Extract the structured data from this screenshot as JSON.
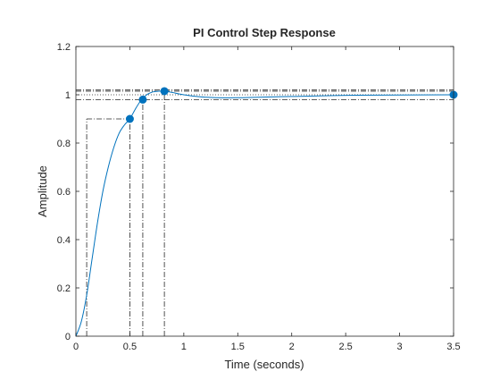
{
  "chart_data": {
    "type": "line",
    "title": "PI Control Step Response",
    "xlabel": "Time (seconds)",
    "ylabel": "Amplitude",
    "xlim": [
      0,
      3.5
    ],
    "ylim": [
      0,
      1.2
    ],
    "xticks": [
      0,
      0.5,
      1,
      1.5,
      2,
      2.5,
      3,
      3.5
    ],
    "yticks": [
      0,
      0.2,
      0.4,
      0.6,
      0.8,
      1,
      1.2
    ],
    "xtick_labels": [
      "0",
      "0.5",
      "1",
      "1.5",
      "2",
      "2.5",
      "3",
      "3.5"
    ],
    "ytick_labels": [
      "0",
      "0.2",
      "0.4",
      "0.6",
      "0.8",
      "1",
      "1.2"
    ],
    "grid": false,
    "series": [
      {
        "color": "#0072BD",
        "x": [
          0,
          0.05,
          0.1,
          0.15,
          0.2,
          0.25,
          0.3,
          0.35,
          0.4,
          0.45,
          0.5,
          0.55,
          0.6,
          0.65,
          0.7,
          0.75,
          0.8,
          0.85,
          0.9,
          0.95,
          1.0,
          1.1,
          1.2,
          1.3,
          1.5,
          1.7,
          2.0,
          2.3,
          2.6,
          3.0,
          3.5
        ],
        "y": [
          0,
          0.06,
          0.17,
          0.32,
          0.47,
          0.6,
          0.7,
          0.78,
          0.84,
          0.875,
          0.9,
          0.94,
          0.975,
          0.998,
          1.01,
          1.014,
          1.015,
          1.013,
          1.009,
          1.004,
          1.0,
          0.994,
          0.99,
          0.988,
          0.988,
          0.99,
          0.993,
          0.996,
          0.998,
          0.999,
          1.0
        ]
      }
    ],
    "markers": [
      {
        "x": 0.5,
        "y": 0.9
      },
      {
        "x": 0.62,
        "y": 0.98
      },
      {
        "x": 0.82,
        "y": 1.015
      },
      {
        "x": 3.5,
        "y": 1.0
      }
    ],
    "steady_state": 1.0,
    "settling_band": [
      0.98,
      1.02
    ],
    "peak_line": 1.015,
    "vertical_guides": [
      {
        "x": 0.1,
        "y": 0.9
      },
      {
        "x": 0.5,
        "y": 0.9
      },
      {
        "x": 0.62,
        "y": 0.98
      },
      {
        "x": 0.82,
        "y": 1.015
      }
    ],
    "rise_guide": {
      "x_start": 0.1,
      "x_end": 0.5,
      "y": 0.9
    },
    "marker_color": "#0072BD"
  }
}
